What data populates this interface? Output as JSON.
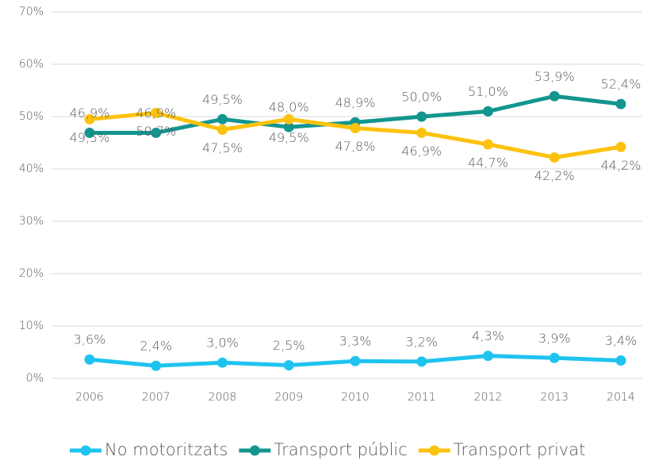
{
  "chart_data": {
    "type": "line",
    "categories": [
      "2006",
      "2007",
      "2008",
      "2009",
      "2010",
      "2011",
      "2012",
      "2013",
      "2014"
    ],
    "series": [
      {
        "name": "No motoritzats",
        "color": "#1fc3f0",
        "label_position": "above",
        "values": [
          3.6,
          2.4,
          3.0,
          2.5,
          3.3,
          3.2,
          4.3,
          3.9,
          3.4
        ],
        "value_labels": [
          "3,6%",
          "2,4%",
          "3,0%",
          "2,5%",
          "3,3%",
          "3,2%",
          "4,3%",
          "3,9%",
          "3,4%"
        ]
      },
      {
        "name": "Transport públic",
        "color": "#13958f",
        "label_position": "above",
        "values": [
          46.9,
          46.9,
          49.5,
          48.0,
          48.9,
          50.0,
          51.0,
          53.9,
          52.4
        ],
        "value_labels": [
          "46,9%",
          "46,9%",
          "49,5%",
          "48,0%",
          "48,9%",
          "50,0%",
          "51,0%",
          "53,9%",
          "52,4%"
        ]
      },
      {
        "name": "Transport privat",
        "color": "#fdc20e",
        "label_position": "below",
        "values": [
          49.5,
          50.7,
          47.5,
          49.5,
          47.8,
          46.9,
          44.7,
          42.2,
          44.2
        ],
        "value_labels": [
          "49,5%",
          "50,7%",
          "47,5%",
          "49,5%",
          "47,8%",
          "46,9%",
          "44,7%",
          "42,2%",
          "44,2%"
        ]
      }
    ],
    "ylim": [
      0,
      70
    ],
    "yticks": [
      {
        "value": 0,
        "label": "0%"
      },
      {
        "value": 10,
        "label": "10%"
      },
      {
        "value": 20,
        "label": "20%"
      },
      {
        "value": 30,
        "label": "30%"
      },
      {
        "value": 40,
        "label": "40%"
      },
      {
        "value": 50,
        "label": "50%"
      },
      {
        "value": 60,
        "label": "60%"
      },
      {
        "value": 70,
        "label": "70%"
      }
    ],
    "grid": true,
    "legend": "bottom"
  }
}
